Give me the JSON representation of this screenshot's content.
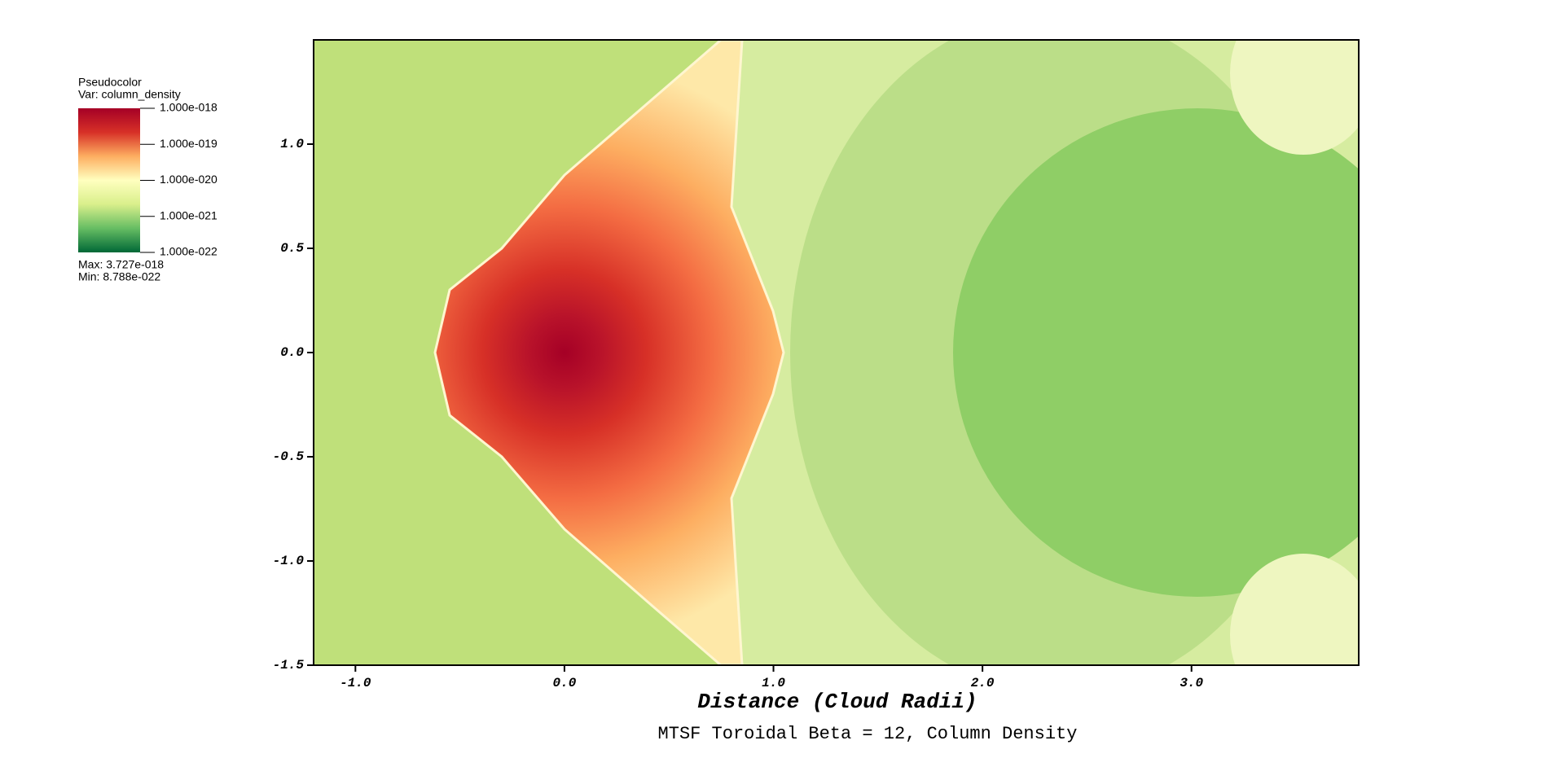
{
  "chart_data": {
    "type": "pseudocolor",
    "title": "MTSF Toroidal Beta = 12, Column Density",
    "x_label": "Distance (Cloud Radii)",
    "xlim": [
      -1.2,
      3.8
    ],
    "xticks": [
      {
        "value": -1,
        "label": "-1.0"
      },
      {
        "value": 0,
        "label": "0.0"
      },
      {
        "value": 1,
        "label": "1.0"
      },
      {
        "value": 2,
        "label": "2.0"
      },
      {
        "value": 3,
        "label": "3.0"
      }
    ],
    "ylim": [
      -1.5,
      1.5
    ],
    "yticks": [
      {
        "value": 1,
        "label": "1.0"
      },
      0.5,
      {
        "value": 0,
        "label": "0.0"
      },
      -0.5,
      {
        "value": -1,
        "label": "-1.0"
      },
      -1.5
    ],
    "colorbar": {
      "title": "Pseudocolor",
      "variable": "Var: column_density",
      "log": true,
      "lim": [
        1e-22,
        1e-18
      ],
      "ticks": [
        {
          "value": 1e-18,
          "label": "1.000e-018"
        },
        {
          "value": 1e-19,
          "label": "1.000e-019"
        },
        {
          "value": 1e-20,
          "label": "1.000e-020"
        },
        {
          "value": 1e-21,
          "label": "1.000e-021"
        },
        {
          "value": 1e-22,
          "label": "1.000e-022"
        }
      ],
      "colors": [
        "#006837",
        "#66bd63",
        "#d9ef8b",
        "#ffffbf",
        "#fdae61",
        "#d73027",
        "#a50026"
      ],
      "max_label": "Max:  3.727e-018",
      "min_label": "Min:  8.788e-022"
    }
  }
}
